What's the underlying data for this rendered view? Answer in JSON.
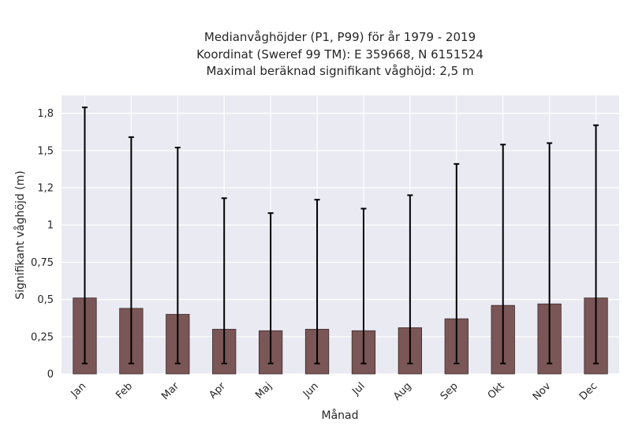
{
  "chart_data": {
    "type": "bar",
    "title_lines": [
      "Medianvåghöjder (P1, P99) för år 1979 - 2019",
      "Koordinat (Sweref 99 TM): E 359668, N 6151524",
      "Maximal beräknad signifikant våghöjd: 2,5 m"
    ],
    "xlabel": "Månad",
    "ylabel": "Signifikant våghöjd (m)",
    "categories": [
      "Jan",
      "Feb",
      "Mar",
      "Apr",
      "Maj",
      "Jun",
      "Jul",
      "Aug",
      "Sep",
      "Okt",
      "Nov",
      "Dec"
    ],
    "values": [
      0.51,
      0.44,
      0.4,
      0.3,
      0.29,
      0.3,
      0.29,
      0.31,
      0.37,
      0.46,
      0.47,
      0.51
    ],
    "p1": [
      0.07,
      0.07,
      0.07,
      0.07,
      0.07,
      0.07,
      0.07,
      0.07,
      0.07,
      0.07,
      0.07,
      0.07
    ],
    "p99": [
      1.79,
      1.59,
      1.52,
      1.18,
      1.08,
      1.17,
      1.11,
      1.2,
      1.41,
      1.54,
      1.55,
      1.67
    ],
    "ylim": [
      0,
      1.87
    ],
    "yticks": [
      0,
      0.25,
      0.5,
      0.75,
      1,
      1.25,
      1.5,
      1.75
    ],
    "ytick_labels": [
      "0",
      "0,25",
      "0,5",
      "0,75",
      "1",
      "1,2",
      "1,5",
      "1,8"
    ],
    "grid": true,
    "colors": {
      "bar_fill": "#7b5657",
      "bar_edge": "#3a2a2a",
      "errorbar": "#000000",
      "plot_background": "#eaeaf2",
      "grid": "#ffffff"
    }
  }
}
